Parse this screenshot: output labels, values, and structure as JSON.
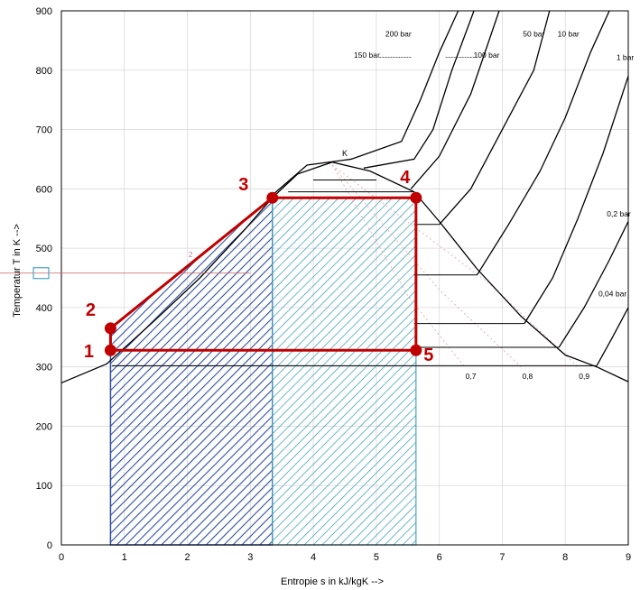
{
  "chart_data": {
    "type": "line",
    "xlabel": "Entropie s in kJ/kgK  -->",
    "ylabel": "Temperatur T in K  -->",
    "xlim": [
      0,
      9
    ],
    "ylim": [
      0,
      900
    ],
    "x_ticks": [
      0,
      1,
      2,
      3,
      4,
      5,
      6,
      7,
      8,
      9
    ],
    "y_ticks": [
      0,
      100,
      200,
      300,
      400,
      500,
      600,
      700,
      800,
      900
    ],
    "grid": true,
    "colors": {
      "cycle": "#c00000",
      "hatch_left": "#2f4f9f",
      "hatch_right": "#4aa3c0",
      "lines": "#000000",
      "quality_lines": "#d9a5a5"
    },
    "critical_point_label": "K",
    "saturation_dome": {
      "liquid_side": [
        [
          0.0,
          273
        ],
        [
          0.72,
          305
        ],
        [
          1.5,
          380
        ],
        [
          2.2,
          450
        ],
        [
          2.9,
          530
        ],
        [
          3.35,
          585
        ],
        [
          3.75,
          625
        ],
        [
          4.3,
          645
        ]
      ],
      "vapor_side": [
        [
          4.3,
          645
        ],
        [
          4.9,
          630
        ],
        [
          5.6,
          595
        ],
        [
          6.0,
          545
        ],
        [
          6.6,
          465
        ],
        [
          7.3,
          385
        ],
        [
          8.0,
          320
        ],
        [
          8.5,
          300
        ],
        [
          9.0,
          275
        ]
      ]
    },
    "isobars": [
      {
        "label": "200 bar",
        "points": [
          [
            3.3,
            585
          ],
          [
            3.9,
            640
          ],
          [
            4.6,
            650
          ],
          [
            5.4,
            680
          ],
          [
            5.7,
            750
          ],
          [
            6.0,
            830
          ],
          [
            6.3,
            900
          ]
        ]
      },
      {
        "label": "150 bar",
        "points": [
          [
            4.8,
            635
          ],
          [
            5.6,
            650
          ],
          [
            5.9,
            700
          ],
          [
            6.2,
            800
          ],
          [
            6.55,
            900
          ]
        ]
      },
      {
        "label": "100 bar",
        "points": [
          [
            5.55,
            600
          ],
          [
            6.0,
            655
          ],
          [
            6.5,
            760
          ],
          [
            6.95,
            900
          ]
        ]
      },
      {
        "label": "50 bar",
        "points": [
          [
            6.0,
            540
          ],
          [
            6.5,
            600
          ],
          [
            7.0,
            700
          ],
          [
            7.5,
            800
          ],
          [
            7.75,
            900
          ]
        ]
      },
      {
        "label": "10 bar",
        "points": [
          [
            6.6,
            455
          ],
          [
            7.1,
            540
          ],
          [
            7.6,
            630
          ],
          [
            8.0,
            720
          ],
          [
            8.4,
            830
          ],
          [
            8.7,
            900
          ]
        ]
      },
      {
        "label": "1 bar",
        "points": [
          [
            7.35,
            373
          ],
          [
            7.8,
            450
          ],
          [
            8.2,
            550
          ],
          [
            8.6,
            660
          ],
          [
            9.0,
            790
          ]
        ]
      },
      {
        "label": "0,2 bar",
        "points": [
          [
            7.9,
            333
          ],
          [
            8.3,
            400
          ],
          [
            8.7,
            480
          ],
          [
            9.0,
            545
          ]
        ]
      },
      {
        "label": "0,04 bar",
        "points": [
          [
            8.5,
            302
          ],
          [
            8.75,
            350
          ],
          [
            9.0,
            400
          ]
        ]
      }
    ],
    "isobar_annotations": [
      "200 bar",
      "150 bar",
      "100 bar",
      "50 bar",
      "10 bar",
      "1 bar",
      "0,2 bar",
      "0,04 bar"
    ],
    "quality_labels": [
      "0,7",
      "0,8",
      "0,9"
    ],
    "faint_label": "2",
    "cycle": {
      "points": [
        {
          "label": "1",
          "s": 0.78,
          "T": 328
        },
        {
          "label": "2",
          "s": 0.78,
          "T": 365
        },
        {
          "label": "3",
          "s": 3.35,
          "T": 585
        },
        {
          "label": "4",
          "s": 5.63,
          "T": 585
        },
        {
          "label": "5",
          "s": 5.63,
          "T": 328
        }
      ]
    },
    "hatch_regions": [
      {
        "name": "heat-input-liquid",
        "s_from": 0.78,
        "s_to": 3.35
      },
      {
        "name": "heat-input-evaporation",
        "s_from": 3.35,
        "s_to": 5.63
      }
    ]
  }
}
